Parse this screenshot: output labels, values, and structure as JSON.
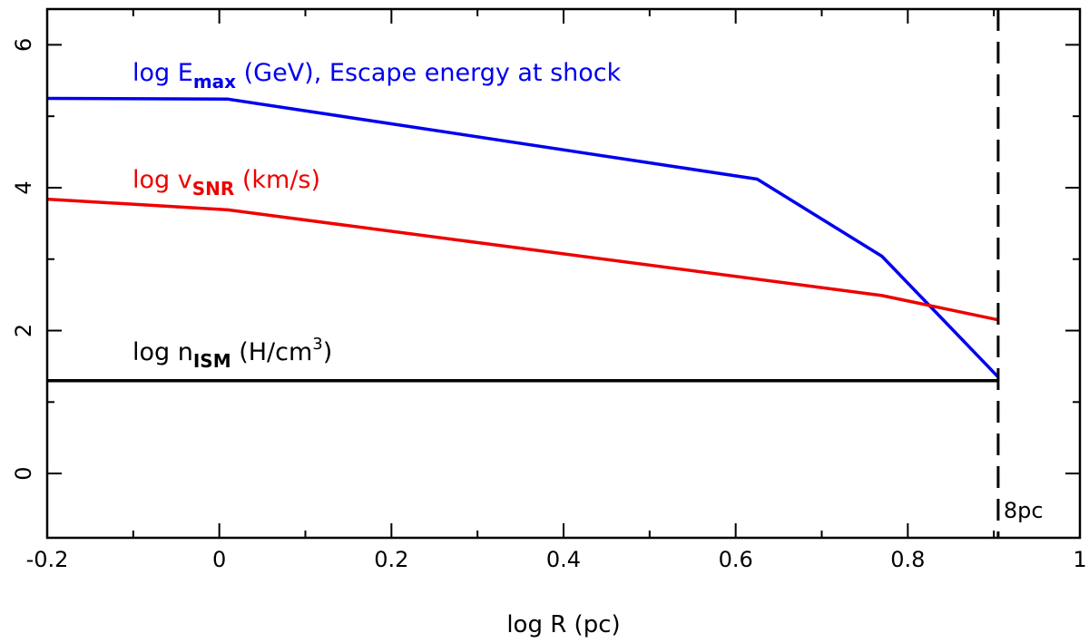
{
  "chart_data": {
    "type": "line",
    "title": "",
    "xlabel": "log R (pc)",
    "ylabel": "",
    "xlim": [
      -0.2,
      1.0
    ],
    "ylim": [
      -0.9,
      6.5
    ],
    "grid": false,
    "x_ticks": [
      "-0.2",
      "0",
      "0.2",
      "0.4",
      "0.6",
      "0.8",
      "1"
    ],
    "x_tick_values": [
      -0.2,
      0,
      0.2,
      0.4,
      0.6,
      0.8,
      1.0
    ],
    "y_ticks": [
      "0",
      "2",
      "4",
      "6"
    ],
    "y_tick_values": [
      0,
      2,
      4,
      6
    ],
    "series": [
      {
        "name": "log E_max (GeV), Escape energy at shock",
        "label_main": "log E",
        "label_sub": "max",
        "label_rest": " (GeV), Escape energy at shock",
        "color": "#0000ee",
        "x": [
          -0.2,
          0.01,
          0.625,
          0.77,
          0.905
        ],
        "y": [
          5.25,
          5.24,
          4.12,
          3.04,
          1.35
        ]
      },
      {
        "name": "log v_SNR (km/s)",
        "label_main": "log v",
        "label_sub": "SNR",
        "label_rest": " (km/s)",
        "color": "#ee0000",
        "x": [
          -0.2,
          0.01,
          0.77,
          0.905
        ],
        "y": [
          3.84,
          3.69,
          2.49,
          2.15
        ]
      },
      {
        "name": "log n_ISM (H/cm^3)",
        "label_main": "log n",
        "label_sub": "ISM",
        "label_rest": " (H/cm",
        "label_sup": "3",
        "label_end": ")",
        "color": "#000000",
        "x": [
          -0.2,
          0.905
        ],
        "y": [
          1.3,
          1.3
        ]
      }
    ],
    "annotations": [
      {
        "text": "8pc",
        "x": 0.905,
        "type": "dashed-vertical-line",
        "color": "#000000"
      }
    ]
  }
}
